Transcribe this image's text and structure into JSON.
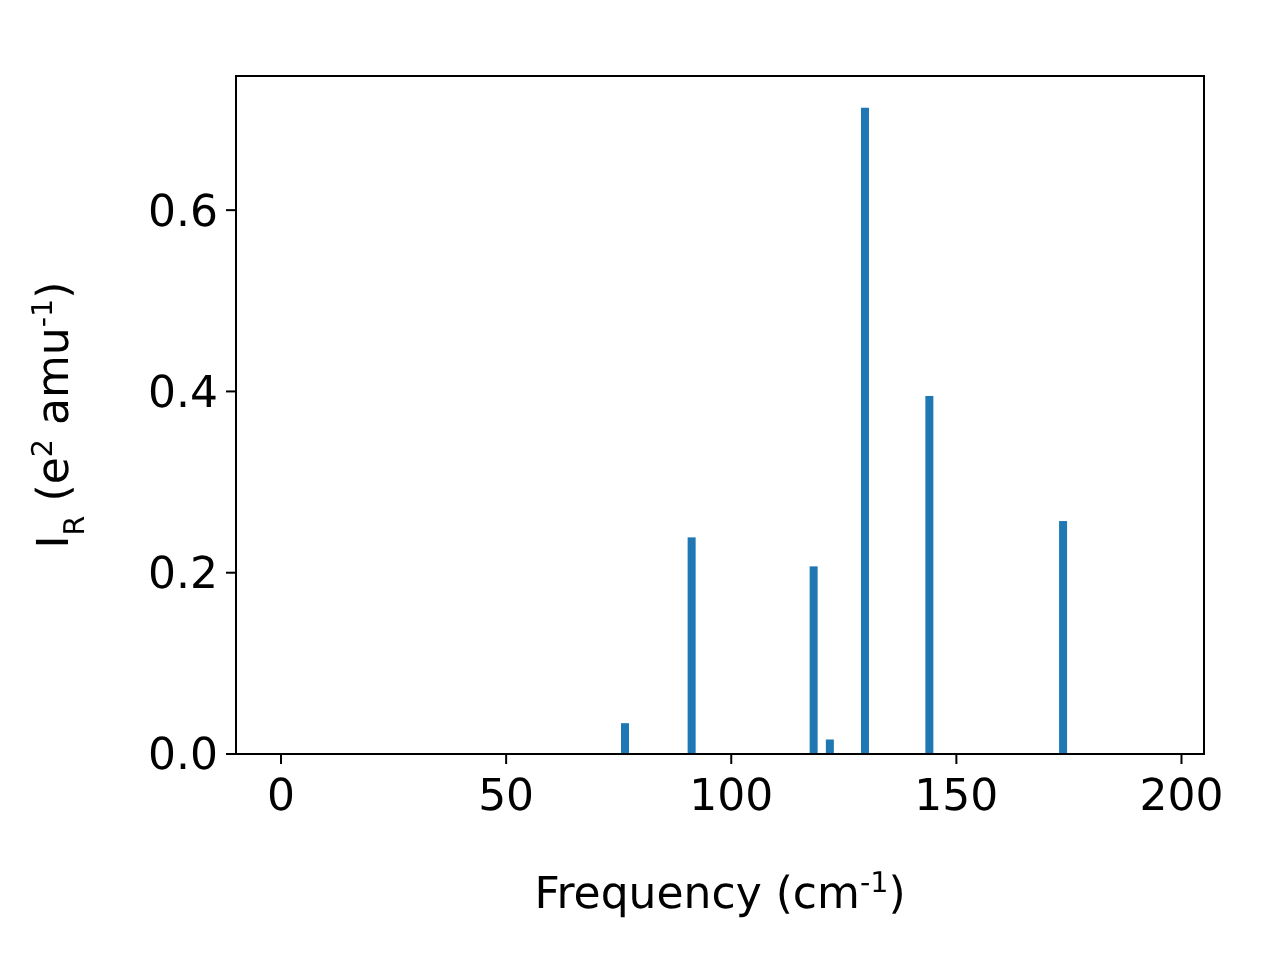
{
  "chart_data": {
    "type": "bar",
    "xlabel": "Frequency (cm$^{-1}$)",
    "ylabel": "I$_{R}$ (e$^{2}$ amu$^{-1}$)",
    "x": [
      76.4,
      91.2,
      118.3,
      121.9,
      129.7,
      144.0,
      173.7
    ],
    "values": [
      0.034,
      0.239,
      0.207,
      0.016,
      0.713,
      0.395,
      0.257
    ],
    "color": "#1f77b4",
    "xlim": [
      -10,
      205
    ],
    "xticks": [
      0,
      50,
      100,
      150,
      200
    ],
    "ylim": [
      0,
      0.748
    ],
    "yticks": [
      {
        "value": 0,
        "label": "0.0"
      },
      {
        "value": 0.2,
        "label": "0.2"
      },
      {
        "value": 0.4,
        "label": "0.4"
      },
      {
        "value": 0.6,
        "label": "0.6"
      }
    ]
  }
}
